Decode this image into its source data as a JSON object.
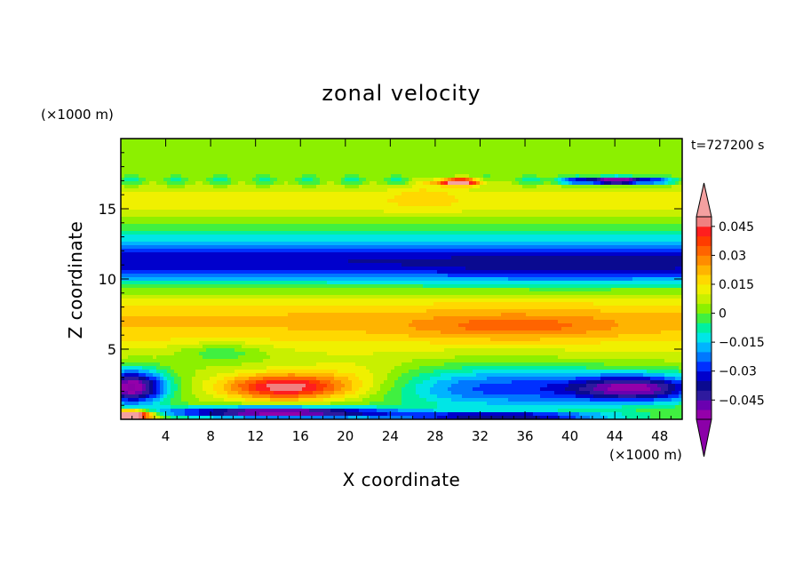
{
  "chart_data": {
    "type": "heatmap",
    "title": "zonal velocity",
    "xlabel": "X coordinate",
    "ylabel": "Z coordinate",
    "x_units": "(×1000 m)",
    "y_units": "(×1000 m)",
    "time_label": "t=727200 s",
    "xlim": [
      0,
      50
    ],
    "ylim": [
      0,
      20
    ],
    "x_ticks": [
      4,
      8,
      12,
      16,
      20,
      24,
      28,
      32,
      36,
      40,
      44,
      48
    ],
    "x_tick_labels": [
      "4",
      "8",
      "12",
      "16",
      "20",
      "24",
      "28",
      "32",
      "36",
      "40",
      "44",
      "48"
    ],
    "y_ticks": [
      5,
      10,
      15
    ],
    "y_tick_labels": [
      "5",
      "10",
      "15"
    ],
    "colorbar": {
      "levels": [
        -0.055,
        -0.05,
        -0.045,
        -0.04,
        -0.035,
        -0.03,
        -0.025,
        -0.02,
        -0.015,
        -0.01,
        -0.005,
        0,
        0.005,
        0.01,
        0.015,
        0.02,
        0.025,
        0.03,
        0.035,
        0.04,
        0.045,
        0.05
      ],
      "colors": [
        "#9400aa",
        "#6a00b0",
        "#2e1a9e",
        "#0a0a90",
        "#0000cc",
        "#0030ff",
        "#0078ff",
        "#00b4ff",
        "#00e6e6",
        "#00f0a0",
        "#40f040",
        "#8cf000",
        "#c8f000",
        "#f0f000",
        "#ffd800",
        "#ffb400",
        "#ff8c00",
        "#ff6400",
        "#ff3c00",
        "#ff1e1e",
        "#f08080"
      ],
      "under_color": "#8b00a8",
      "over_color": "#f4a0a0",
      "tick_values": [
        0.045,
        0.03,
        0.015,
        0,
        -0.015,
        -0.03,
        -0.045
      ],
      "tick_labels": [
        "0.045",
        "0.03",
        "0.015",
        "0",
        "−0.015",
        "−0.03",
        "−0.045"
      ]
    }
  }
}
